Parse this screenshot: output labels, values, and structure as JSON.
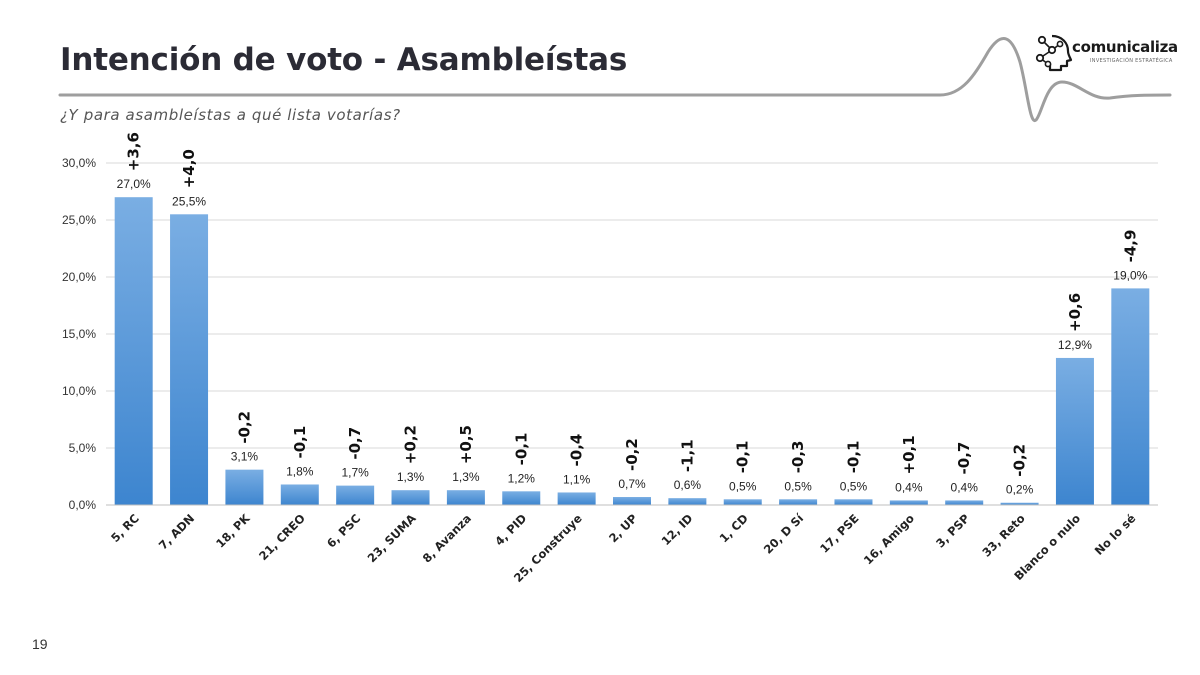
{
  "slide": {
    "title": "Intención de voto - Asambleístas",
    "subtitle": "¿Y para asambleístas a qué lista votarías?",
    "page_number": "19"
  },
  "brand": {
    "name": "comunicaliza",
    "tagline": "INVESTIGACIÓN ESTRATÉGICA",
    "icon": "network-head-icon"
  },
  "colors": {
    "bar_top": "#7aaee3",
    "bar_bottom": "#3d85cf",
    "grid": "#d9d9d9",
    "header_line": "#9e9e9e"
  },
  "chart_data": {
    "type": "bar",
    "categories": [
      "5, RC",
      "7, ADN",
      "18, PK",
      "21, CREO",
      "6, PSC",
      "23, SUMA",
      "8, Avanza",
      "4, PID",
      "25, Construye",
      "2, UP",
      "12, ID",
      "1, CD",
      "20, D Sí",
      "17, PSE",
      "16, Amigo",
      "3, PSP",
      "33, Reto",
      "Blanco o nulo",
      "No lo sé"
    ],
    "values": [
      27.0,
      25.5,
      3.1,
      1.8,
      1.7,
      1.3,
      1.3,
      1.2,
      1.1,
      0.7,
      0.6,
      0.5,
      0.5,
      0.5,
      0.4,
      0.4,
      0.2,
      12.9,
      19.0
    ],
    "value_labels": [
      "27,0%",
      "25,5%",
      "3,1%",
      "1,8%",
      "1,7%",
      "1,3%",
      "1,3%",
      "1,2%",
      "1,1%",
      "0,7%",
      "0,6%",
      "0,5%",
      "0,5%",
      "0,5%",
      "0,4%",
      "0,4%",
      "0,2%",
      "12,9%",
      "19,0%"
    ],
    "change_labels": [
      "+3,6",
      "+4,0",
      "-0,2",
      "-0,1",
      "-0,7",
      "+0,2",
      "+0,5",
      "-0,1",
      "-0,4",
      "-0,2",
      "-1,1",
      "-0,1",
      "-0,3",
      "-0,1",
      "+0,1",
      "-0,7",
      "-0,2",
      "+0,6",
      "-4,9"
    ],
    "y_ticks": [
      "0,0%",
      "5,0%",
      "10,0%",
      "15,0%",
      "20,0%",
      "25,0%",
      "30,0%"
    ],
    "ylim": [
      0,
      30
    ],
    "grid": true,
    "legend": "none",
    "xlabel": "",
    "ylabel": ""
  }
}
